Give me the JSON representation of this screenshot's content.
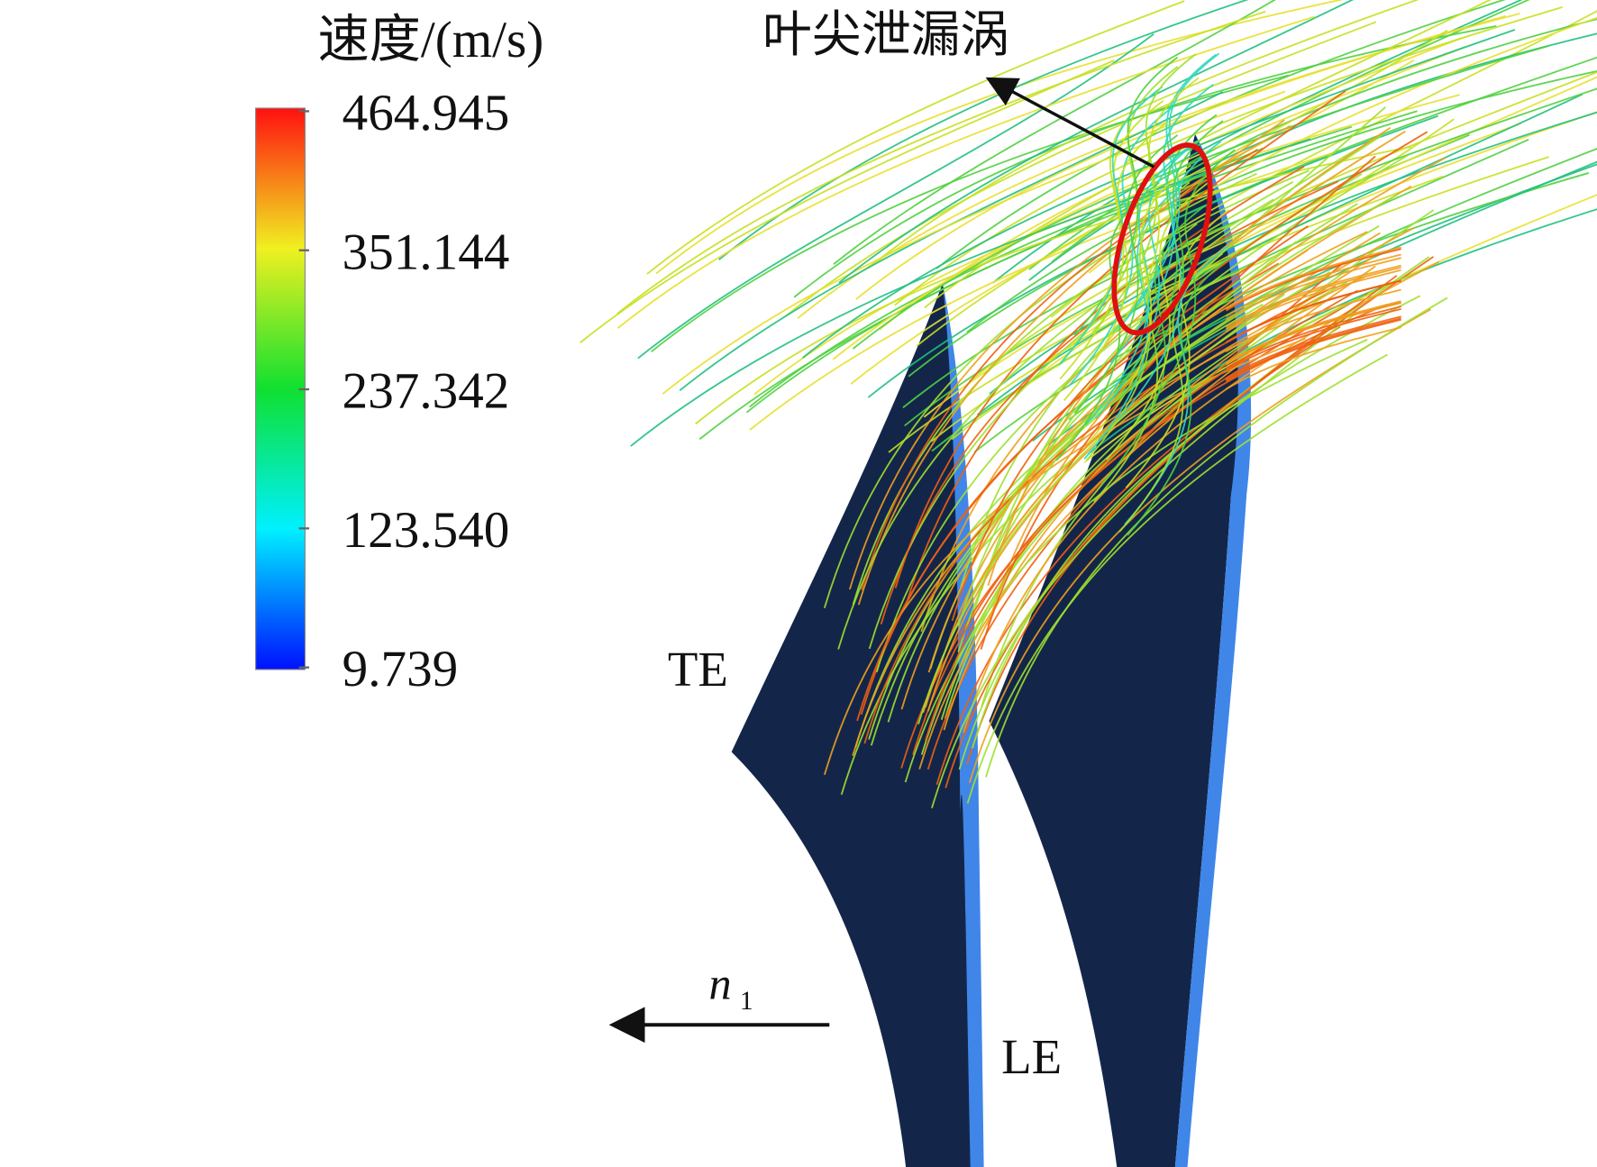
{
  "colorbar": {
    "title": "速度/(m/s)",
    "ticks": [
      464.945,
      351.144,
      237.342,
      {
        "value": 123.54,
        "label": "123.540"
      },
      9.739
    ]
  },
  "annotations": {
    "vortex": "叶尖泄漏涡",
    "trailing_edge": "TE",
    "leading_edge": "LE",
    "rotation": {
      "main": "n",
      "sub": "1"
    }
  }
}
